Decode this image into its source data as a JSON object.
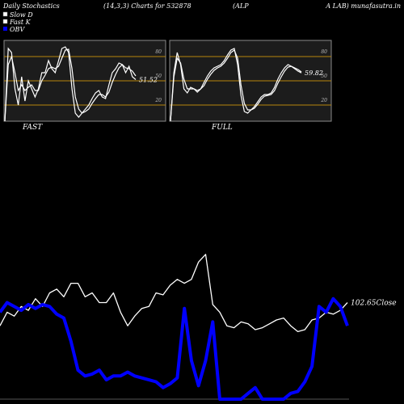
{
  "header": {
    "title_left": "Daily Stochastics",
    "title_params": "(14,3,3) Charts for 532878",
    "title_company": "(ALP",
    "title_right": "A LAB) munafasutra.in"
  },
  "legend": [
    {
      "label": "Slow  D",
      "color": "#ffffff"
    },
    {
      "label": "Fast K",
      "color": "#ffffff"
    },
    {
      "label": "OBV",
      "color": "#0000ff"
    }
  ],
  "chart_data": [
    {
      "type": "line",
      "title": "FAST",
      "ylim": [
        0,
        100
      ],
      "yticks": [
        "80",
        "50",
        "20"
      ],
      "reference_lines": [
        80,
        50,
        20
      ],
      "last_value_label": "51.52",
      "series": [
        {
          "values": [
            0,
            90,
            85,
            40,
            20,
            55,
            25,
            50,
            40,
            30,
            40,
            60,
            60,
            75,
            65,
            60,
            75,
            90,
            92,
            85,
            40,
            10,
            5,
            10,
            15,
            20,
            28,
            35,
            38,
            30,
            28,
            45,
            60,
            65,
            72,
            70,
            60,
            68,
            55,
            51.52
          ]
        },
        {
          "values": [
            0,
            70,
            80,
            60,
            38,
            45,
            38,
            42,
            45,
            38,
            38,
            50,
            57,
            65,
            67,
            65,
            68,
            78,
            88,
            89,
            65,
            30,
            15,
            10,
            12,
            15,
            22,
            28,
            33,
            33,
            30,
            36,
            48,
            58,
            66,
            70,
            66,
            65,
            62,
            56
          ]
        }
      ]
    },
    {
      "type": "line",
      "title": "FULL",
      "ylim": [
        0,
        100
      ],
      "yticks": [
        "80",
        "50",
        "20"
      ],
      "reference_lines": [
        80,
        50,
        20
      ],
      "last_value_label": "59.82",
      "series": [
        {
          "values": [
            0,
            60,
            85,
            70,
            40,
            35,
            42,
            40,
            36,
            40,
            48,
            56,
            62,
            66,
            68,
            70,
            75,
            82,
            88,
            90,
            70,
            32,
            12,
            10,
            14,
            18,
            24,
            30,
            33,
            33,
            35,
            42,
            52,
            60,
            66,
            70,
            68,
            65,
            62,
            59.82
          ]
        },
        {
          "values": [
            0,
            55,
            78,
            72,
            52,
            40,
            40,
            40,
            38,
            40,
            44,
            52,
            58,
            63,
            66,
            68,
            72,
            78,
            85,
            88,
            78,
            45,
            22,
            14,
            14,
            16,
            21,
            27,
            31,
            32,
            33,
            38,
            47,
            55,
            62,
            67,
            68,
            66,
            64,
            61
          ]
        }
      ]
    },
    {
      "type": "line",
      "last_value_label": "102.65",
      "last_value_suffix": "Close",
      "series": [
        {
          "name": "Close",
          "color": "#ffffff",
          "values": [
            38,
            45,
            43,
            48,
            46,
            52,
            48,
            55,
            57,
            53,
            60,
            60,
            53,
            55,
            50,
            50,
            55,
            45,
            38,
            43,
            47,
            48,
            55,
            54,
            59,
            62,
            60,
            62,
            71,
            75,
            49,
            45,
            38,
            37,
            40,
            39,
            36,
            37,
            39,
            41,
            42,
            38,
            35,
            36,
            41,
            42,
            45,
            44,
            46,
            50
          ]
        },
        {
          "name": "OBV",
          "color": "#0000ff",
          "values": [
            45,
            50,
            48,
            46,
            49,
            47,
            49,
            48,
            44,
            42,
            30,
            15,
            12,
            13,
            15,
            10,
            12,
            12,
            14,
            12,
            11,
            10,
            9,
            6,
            8,
            11,
            47,
            20,
            7,
            20,
            40,
            0,
            0,
            0,
            0,
            3,
            6,
            0,
            0,
            0,
            0,
            3,
            4,
            9,
            17,
            48,
            45,
            52,
            48,
            38
          ]
        }
      ]
    }
  ],
  "colors": {
    "background": "#000000",
    "panel": "#1c1c1c",
    "panel_border": "#8a8a8a",
    "reference_line": "#b8860b",
    "line": "#ffffff",
    "obv": "#0000ff"
  }
}
